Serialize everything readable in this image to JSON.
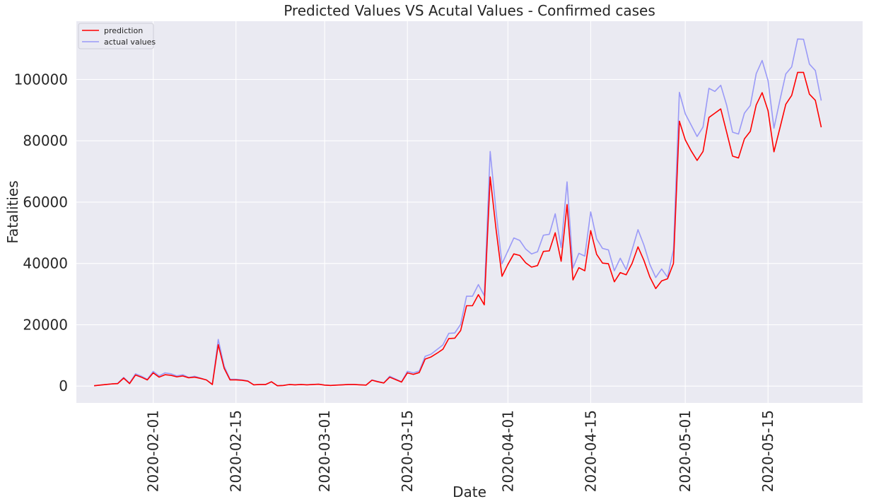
{
  "chart_data": {
    "type": "line",
    "title": "Predicted Values VS Acutal Values - Confirmed cases",
    "xlabel": "Date",
    "ylabel": "Fatalities",
    "x_start": "2020-01-22",
    "x_range": [
      "2020-01-19",
      "2020-05-31"
    ],
    "ylim": [
      -5500,
      119000
    ],
    "y_ticks": [
      0,
      20000,
      40000,
      60000,
      80000,
      100000
    ],
    "x_ticks": [
      "2020-02-01",
      "2020-02-15",
      "2020-03-01",
      "2020-03-15",
      "2020-04-01",
      "2020-04-15",
      "2020-05-01",
      "2020-05-15"
    ],
    "grid": true,
    "legend_position": "top-left",
    "series": [
      {
        "name": "prediction",
        "color": "#ff0000",
        "values": [
          100,
          300,
          500,
          700,
          800,
          2600,
          800,
          3600,
          2900,
          2000,
          4300,
          2900,
          3700,
          3500,
          3000,
          3300,
          2700,
          2900,
          2500,
          2000,
          500,
          13500,
          5800,
          2000,
          2000,
          1900,
          1600,
          400,
          500,
          500,
          1400,
          100,
          200,
          500,
          400,
          500,
          400,
          500,
          600,
          300,
          200,
          300,
          400,
          500,
          500,
          400,
          300,
          1900,
          1400,
          1000,
          2900,
          2100,
          1300,
          4300,
          3800,
          4400,
          8800,
          9500,
          10700,
          12000,
          15500,
          15600,
          18100,
          26200,
          26200,
          29800,
          26500,
          68200,
          51000,
          35800,
          39700,
          43100,
          42600,
          40200,
          38800,
          39300,
          43900,
          44100,
          50000,
          40700,
          59200,
          34600,
          38600,
          37600,
          50700,
          43000,
          40100,
          39900,
          34000,
          37000,
          36300,
          40000,
          45400,
          41000,
          35600,
          31800,
          34300,
          35000,
          40000,
          86400,
          80300,
          76700,
          73600,
          76500,
          87600,
          89000,
          90400,
          82800,
          75000,
          74400,
          80600,
          83100,
          91700,
          95700,
          89800,
          76400,
          84100,
          91900,
          94800,
          102300,
          102300,
          95200,
          93200,
          84400
        ]
      },
      {
        "name": "actual values",
        "color": "#9a9af7",
        "values": [
          100,
          300,
          500,
          700,
          900,
          2800,
          1000,
          4000,
          3200,
          2200,
          4800,
          3300,
          4300,
          4000,
          3300,
          3700,
          2800,
          3200,
          2600,
          2000,
          600,
          15200,
          6500,
          2200,
          2200,
          2000,
          1700,
          400,
          500,
          500,
          1400,
          100,
          200,
          500,
          400,
          500,
          400,
          500,
          600,
          300,
          200,
          300,
          400,
          500,
          500,
          400,
          300,
          2000,
          1500,
          1000,
          3200,
          2300,
          1400,
          4800,
          4300,
          4900,
          9700,
          10400,
          11900,
          13400,
          17200,
          17300,
          20100,
          29300,
          29300,
          33100,
          29500,
          76500,
          56800,
          39900,
          44100,
          48300,
          47500,
          44700,
          43100,
          43800,
          49200,
          49500,
          56200,
          45200,
          66600,
          38500,
          43300,
          42400,
          56800,
          48000,
          44900,
          44400,
          37600,
          41700,
          38000,
          44400,
          51000,
          46000,
          39700,
          35400,
          38200,
          35500,
          44400,
          95800,
          88800,
          85100,
          81400,
          84500,
          97100,
          96100,
          98100,
          91600,
          82800,
          82200,
          89000,
          91500,
          101900,
          106200,
          99600,
          84100,
          93200,
          101800,
          104100,
          113200,
          113100,
          105000,
          102900,
          93100
        ]
      }
    ]
  }
}
